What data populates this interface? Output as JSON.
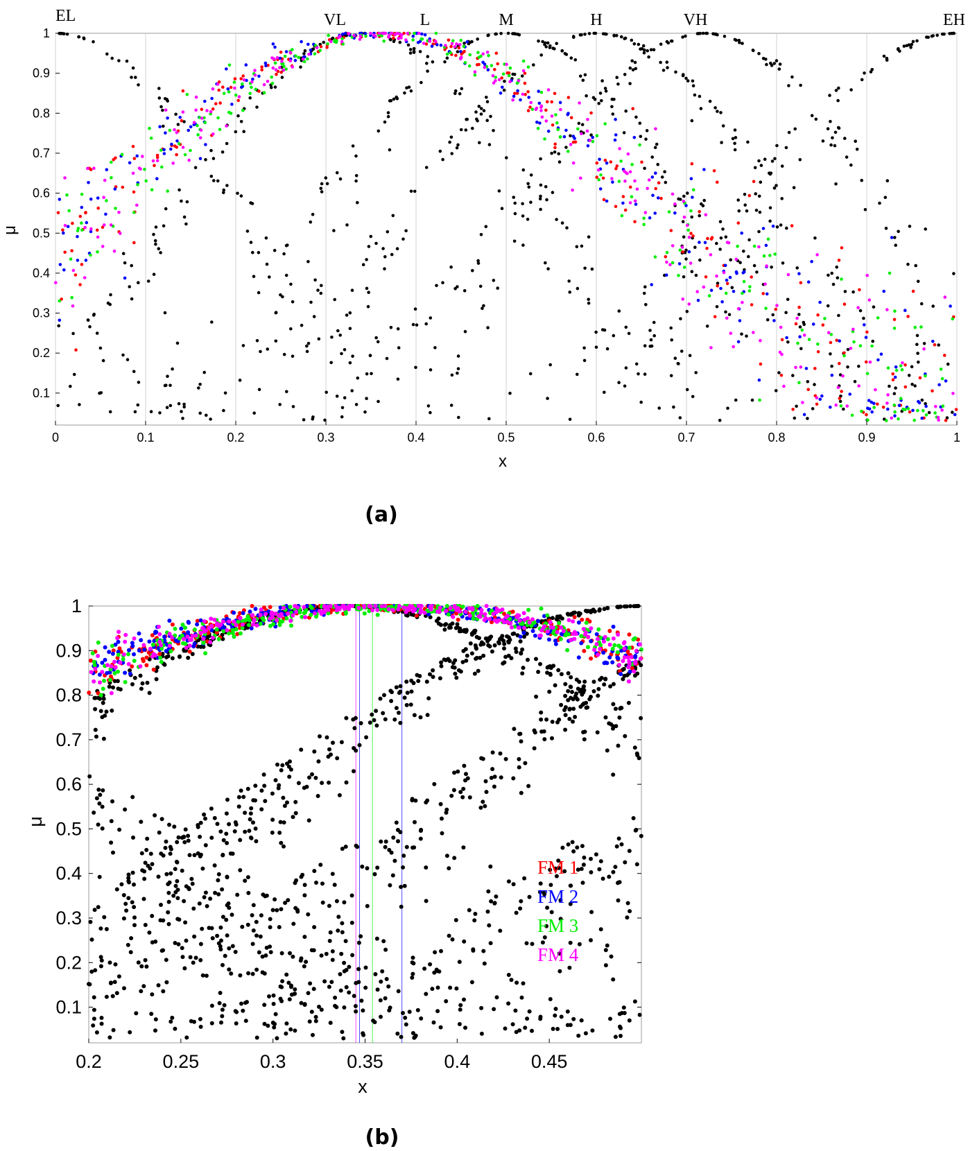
{
  "chart_data": [
    {
      "type": "scatter",
      "caption": "(a)",
      "xlabel": "x",
      "ylabel": "μ",
      "xlim": [
        0,
        1
      ],
      "ylim": [
        0.02,
        1
      ],
      "xticks": [
        "0",
        "0.1",
        "0.2",
        "0.3",
        "0.4",
        "0.5",
        "0.6",
        "0.7",
        "0.8",
        "0.9",
        "1"
      ],
      "xtick_values": [
        0,
        0.1,
        0.2,
        0.3,
        0.4,
        0.5,
        0.6,
        0.7,
        0.8,
        0.9,
        1
      ],
      "yticks": [
        "0.1",
        "0.2",
        "0.3",
        "0.4",
        "0.5",
        "0.6",
        "0.7",
        "0.8",
        "0.9",
        "1"
      ],
      "ytick_values": [
        0.1,
        0.2,
        0.3,
        0.4,
        0.5,
        0.6,
        0.7,
        0.8,
        0.9,
        1
      ],
      "grid": "vertical",
      "terms": [
        {
          "label": "EL",
          "x": 0.0
        },
        {
          "label": "VL",
          "x": 0.31
        },
        {
          "label": "L",
          "x": 0.41
        },
        {
          "label": "M",
          "x": 0.5
        },
        {
          "label": "H",
          "x": 0.6
        },
        {
          "label": "VH",
          "x": 0.71
        },
        {
          "label": "EH",
          "x": 1.0
        }
      ],
      "black_curves": [
        {
          "center": 0.0,
          "width": 0.3
        },
        {
          "center": 0.34,
          "width": 0.3
        },
        {
          "center": 0.5,
          "width": 0.3
        },
        {
          "center": 0.6,
          "width": 0.3
        },
        {
          "center": 0.72,
          "width": 0.3
        },
        {
          "center": 1.0,
          "width": 0.35
        }
      ],
      "series": [
        {
          "name": "FM 1",
          "color": "#ff0000",
          "center": 0.36,
          "width": 0.4
        },
        {
          "name": "FM 2",
          "color": "#0000ff",
          "center": 0.355,
          "width": 0.4
        },
        {
          "name": "FM 3",
          "color": "#00ee00",
          "center": 0.365,
          "width": 0.4
        },
        {
          "name": "FM 4",
          "color": "#ff00ff",
          "center": 0.36,
          "width": 0.4
        }
      ]
    },
    {
      "type": "scatter",
      "caption": "(b)",
      "xlabel": "x",
      "ylabel": "μ",
      "xlim": [
        0.2,
        0.5
      ],
      "ylim": [
        0.02,
        1
      ],
      "xticks": [
        "0.2",
        "0.25",
        "0.3",
        "0.35",
        "0.4",
        "0.45"
      ],
      "xtick_values": [
        0.2,
        0.25,
        0.3,
        0.35,
        0.4,
        0.45
      ],
      "yticks": [
        "0.1",
        "0.2",
        "0.3",
        "0.4",
        "0.5",
        "0.6",
        "0.7",
        "0.8",
        "0.9",
        "1"
      ],
      "ytick_values": [
        0.1,
        0.2,
        0.3,
        0.4,
        0.5,
        0.6,
        0.7,
        0.8,
        0.9,
        1
      ],
      "vlines": [
        {
          "x": 0.345,
          "color": "#ff00ff"
        },
        {
          "x": 0.347,
          "color": "#0000ff"
        },
        {
          "x": 0.354,
          "color": "#00ee00"
        },
        {
          "x": 0.37,
          "color": "#0000ff"
        }
      ],
      "legend": [
        {
          "label": "FM 1",
          "color": "#ff0000"
        },
        {
          "label": "FM 2",
          "color": "#0000ff"
        },
        {
          "label": "FM 3",
          "color": "#00ee00"
        },
        {
          "label": "FM 4",
          "color": "#ff00ff"
        }
      ],
      "legend_position": "bottom-right"
    }
  ]
}
